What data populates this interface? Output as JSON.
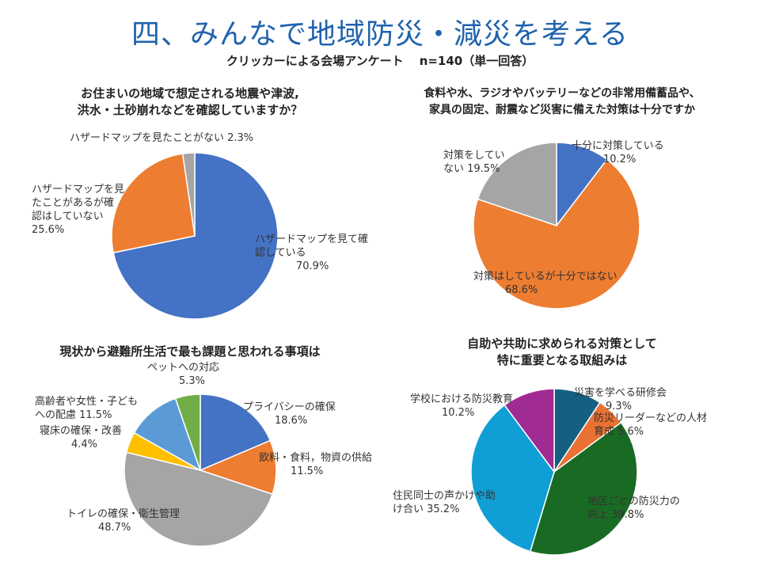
{
  "header": {
    "title": "四、みんなで地域防災・減災を考える",
    "subtitle": "クリッカーによる会場アンケート",
    "sample": "n=140（単一回答）"
  },
  "chart_data": [
    {
      "type": "pie",
      "title_lines": [
        "お住まいの地域で想定される地震や津波,",
        "洪水・土砂崩れなどを確認していますか？"
      ],
      "slices": [
        {
          "label_lines": [
            "ハザードマップを見て確",
            "認している"
          ],
          "value": 70.9,
          "value_text": "70.9%",
          "color": "#4472c4"
        },
        {
          "label_lines": [
            "ハザードマップを見",
            "たことがあるが確",
            "認はしていない"
          ],
          "value": 25.6,
          "value_text": "25.6%",
          "color": "#ed7d31"
        },
        {
          "label_lines": [
            "ハザードマップを見たことがない"
          ],
          "value": 2.3,
          "value_text": "2.3%",
          "color": "#a5a5a5"
        }
      ]
    },
    {
      "type": "pie",
      "title_lines": [
        "食料や水、ラジオやバッテリーなどの非常用備蓄品や、",
        "家具の固定、耐震など災害に備えた対策は十分ですか"
      ],
      "slices": [
        {
          "label_lines": [
            "十分に対策している"
          ],
          "value": 10.2,
          "value_text": "10.2%",
          "color": "#4472c4"
        },
        {
          "label_lines": [
            "対策はしているが十分ではない"
          ],
          "value": 68.6,
          "value_text": "68.6%",
          "color": "#ed7d31"
        },
        {
          "label_lines": [
            "対策をしてい",
            "ない"
          ],
          "value": 19.5,
          "value_text": "19.5%",
          "color": "#a5a5a5"
        }
      ]
    },
    {
      "type": "pie",
      "title_lines": [
        "現状から避難所生活で最も課題と思われる事項は"
      ],
      "slices": [
        {
          "label_lines": [
            "プライバシーの確保"
          ],
          "value": 18.6,
          "value_text": "18.6%",
          "color": "#4472c4"
        },
        {
          "label_lines": [
            "飲料・食料，物資の供給"
          ],
          "value": 11.5,
          "value_text": "11.5%",
          "color": "#ed7d31"
        },
        {
          "label_lines": [
            "トイレの確保・衛生管理"
          ],
          "value": 48.7,
          "value_text": "48.7%",
          "color": "#a5a5a5"
        },
        {
          "label_lines": [
            "寝床の確保・改善"
          ],
          "value": 4.4,
          "value_text": "4.4%",
          "color": "#ffc000"
        },
        {
          "label_lines": [
            "高齢者や女性・子ども",
            "への配慮"
          ],
          "value": 11.5,
          "value_text": "11.5%",
          "color": "#5b9bd5"
        },
        {
          "label_lines": [
            "ペットへの対応"
          ],
          "value": 5.3,
          "value_text": "5.3%",
          "color": "#70ad47"
        }
      ]
    },
    {
      "type": "pie",
      "title_lines": [
        "自助や共助に求められる対策として",
        "特に重要となる取組みは"
      ],
      "slices": [
        {
          "label_lines": [
            "災害を学べる研修会"
          ],
          "value": 9.3,
          "value_text": "9.3%",
          "color": "#156082"
        },
        {
          "label_lines": [
            "防災リーダーなどの人材",
            "育成"
          ],
          "value": 5.6,
          "value_text": "5.6%",
          "color": "#e97132"
        },
        {
          "label_lines": [
            "地区ごとの防災力の",
            "向上"
          ],
          "value": 39.8,
          "value_text": "39.8%",
          "color": "#196b24"
        },
        {
          "label_lines": [
            "住民同士の声かけや助",
            "け合い"
          ],
          "value": 35.2,
          "value_text": "35.2%",
          "color": "#0f9ed5"
        },
        {
          "label_lines": [
            "学校における防災教育"
          ],
          "value": 10.2,
          "value_text": "10.2%",
          "color": "#a02b93"
        }
      ]
    }
  ]
}
